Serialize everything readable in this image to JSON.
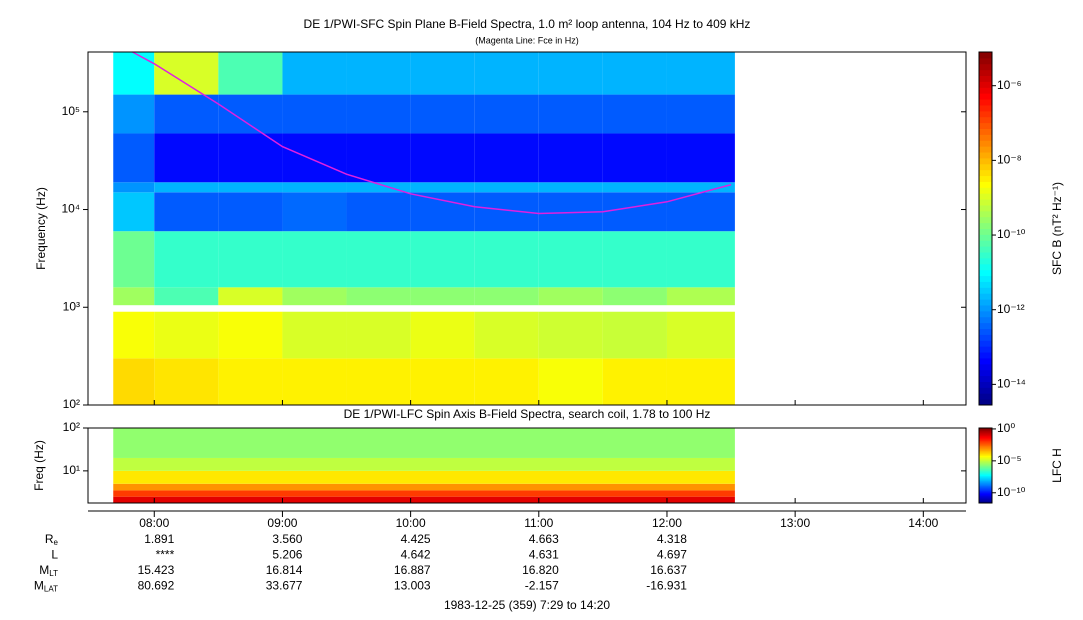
{
  "chart_data": [
    {
      "type": "spectrogram",
      "title": "DE 1/PWI-SFC  Spin Plane B-Field Spectra, 1.0 m² loop antenna, 104 Hz to 409 kHz",
      "subtitle": "(Magenta Line: Fce in Hz)",
      "y_label": "Frequency (Hz)",
      "colorbar_label": "SFC B (nT² Hz⁻¹)",
      "xlim": [
        7.483,
        14.333
      ],
      "ylim": [
        100,
        409000
      ],
      "log_y": true,
      "yticks": [
        {
          "value": 100,
          "label": "10²"
        },
        {
          "value": 1000,
          "label": "10³"
        },
        {
          "value": 10000,
          "label": "10⁴"
        },
        {
          "value": 100000,
          "label": "10⁵"
        }
      ],
      "clim": [
        2.8e-15,
        8e-06
      ],
      "cticks": [
        {
          "value": 1e-06,
          "label": "10⁻⁶"
        },
        {
          "value": 1e-08,
          "label": "10⁻⁸"
        },
        {
          "value": 1e-10,
          "label": "10⁻¹⁰"
        },
        {
          "value": 1e-12,
          "label": "10⁻¹²"
        },
        {
          "value": 1e-14,
          "label": "10⁻¹⁴"
        }
      ],
      "time_edges": [
        7.68,
        8.0,
        8.5,
        9.0,
        9.5,
        10.0,
        10.5,
        11.0,
        11.5,
        12.0,
        12.53
      ],
      "freq_bins": [
        [
          100,
          300
        ],
        [
          300,
          900
        ],
        [
          1050,
          1600
        ],
        [
          1600,
          6000
        ],
        [
          6000,
          15000
        ],
        [
          15000,
          19000
        ],
        [
          19000,
          60000
        ],
        [
          60000,
          150000
        ],
        [
          150000,
          409000
        ]
      ],
      "values": [
        [
          5e-09,
          4e-09,
          3e-09,
          3e-09,
          3e-09,
          3e-09,
          3e-09,
          2e-09,
          3e-09,
          3e-09
        ],
        [
          2e-09,
          1.5e-09,
          2e-09,
          1e-09,
          1e-09,
          1.5e-09,
          1e-09,
          8e-10,
          7e-10,
          1e-09
        ],
        [
          3e-10,
          5e-11,
          1e-09,
          3e-10,
          2e-10,
          2e-10,
          2e-10,
          3e-10,
          2e-10,
          4e-10
        ],
        [
          1e-10,
          3e-11,
          3e-11,
          3e-11,
          3e-11,
          3e-11,
          3e-11,
          3e-11,
          3e-11,
          3e-11
        ],
        [
          3e-12,
          3e-13,
          3e-13,
          4e-13,
          3e-13,
          3e-13,
          3e-13,
          3e-13,
          3e-13,
          3e-13
        ],
        [
          1e-12,
          2e-12,
          2e-12,
          2e-12,
          2e-12,
          2e-12,
          2e-12,
          2e-12,
          2e-12,
          2e-12
        ],
        [
          3e-13,
          5e-14,
          5e-14,
          5e-14,
          5e-14,
          5e-14,
          5e-14,
          5e-14,
          5e-14,
          5e-14
        ],
        [
          1e-12,
          3e-13,
          3e-13,
          3e-13,
          3e-13,
          3e-13,
          3e-13,
          3e-13,
          3e-13,
          3e-13
        ],
        [
          1e-11,
          1e-09,
          5e-11,
          2e-12,
          2e-12,
          2e-12,
          2e-12,
          2e-12,
          2e-12,
          2e-12
        ]
      ],
      "line": {
        "color": "#e020e0",
        "x": [
          7.83,
          8.0,
          8.5,
          9.0,
          9.5,
          10.0,
          10.5,
          11.0,
          11.5,
          12.0,
          12.5
        ],
        "values": [
          409000,
          310000,
          120000,
          44000,
          23000,
          14500,
          10700,
          9100,
          9500,
          12000,
          18000
        ]
      }
    },
    {
      "type": "spectrogram",
      "title": "DE 1/PWI-LFC  Spin Axis B-Field Spectra, search coil, 1.78 to 100 Hz",
      "y_label": "Freq (Hz)",
      "colorbar_label": "LFC H",
      "xlim": [
        7.483,
        14.333
      ],
      "xticks": [
        {
          "value": 8,
          "label": "08:00"
        },
        {
          "value": 9,
          "label": "09:00"
        },
        {
          "value": 10,
          "label": "10:00"
        },
        {
          "value": 11,
          "label": "11:00"
        },
        {
          "value": 12,
          "label": "12:00"
        },
        {
          "value": 13,
          "label": "13:00"
        },
        {
          "value": 14,
          "label": "14:00"
        }
      ],
      "ylim": [
        1.78,
        100
      ],
      "log_y": true,
      "yticks": [
        {
          "value": 10,
          "label": "10¹"
        },
        {
          "value": 100,
          "label": "10²"
        }
      ],
      "clim": [
        2.5e-12,
        1.4
      ],
      "cticks": [
        {
          "value": 1,
          "label": "10⁰"
        },
        {
          "value": 1e-05,
          "label": "10⁻⁵"
        },
        {
          "value": 1e-10,
          "label": "10⁻¹⁰"
        }
      ],
      "time_edges": [
        7.68,
        12.53
      ],
      "freq_bins": [
        [
          1.78,
          2.5
        ],
        [
          2.5,
          3.5
        ],
        [
          3.5,
          5
        ],
        [
          5,
          10
        ],
        [
          10,
          20
        ],
        [
          20,
          100
        ]
      ],
      "values": [
        [
          0.1
        ],
        [
          0.01
        ],
        [
          0.001
        ],
        [
          0.0001
        ],
        [
          1e-05
        ],
        [
          3e-06
        ]
      ]
    }
  ],
  "ephemeris": {
    "rows": [
      {
        "label": "R",
        "sub": "e",
        "values": [
          "1.891",
          "3.560",
          "4.425",
          "4.663",
          "4.318"
        ]
      },
      {
        "label": "L",
        "values": [
          "****",
          "5.206",
          "4.642",
          "4.631",
          "4.697"
        ]
      },
      {
        "label": "M",
        "sub": "LT",
        "values": [
          "15.423",
          "16.814",
          "16.887",
          "16.820",
          "16.637"
        ]
      },
      {
        "label": "M",
        "sub": "LAT",
        "values": [
          "80.692",
          "33.677",
          "13.003",
          "-2.157",
          "-16.931"
        ]
      }
    ]
  },
  "footer": "1983-12-25 (359) 7:29 to 14:20"
}
